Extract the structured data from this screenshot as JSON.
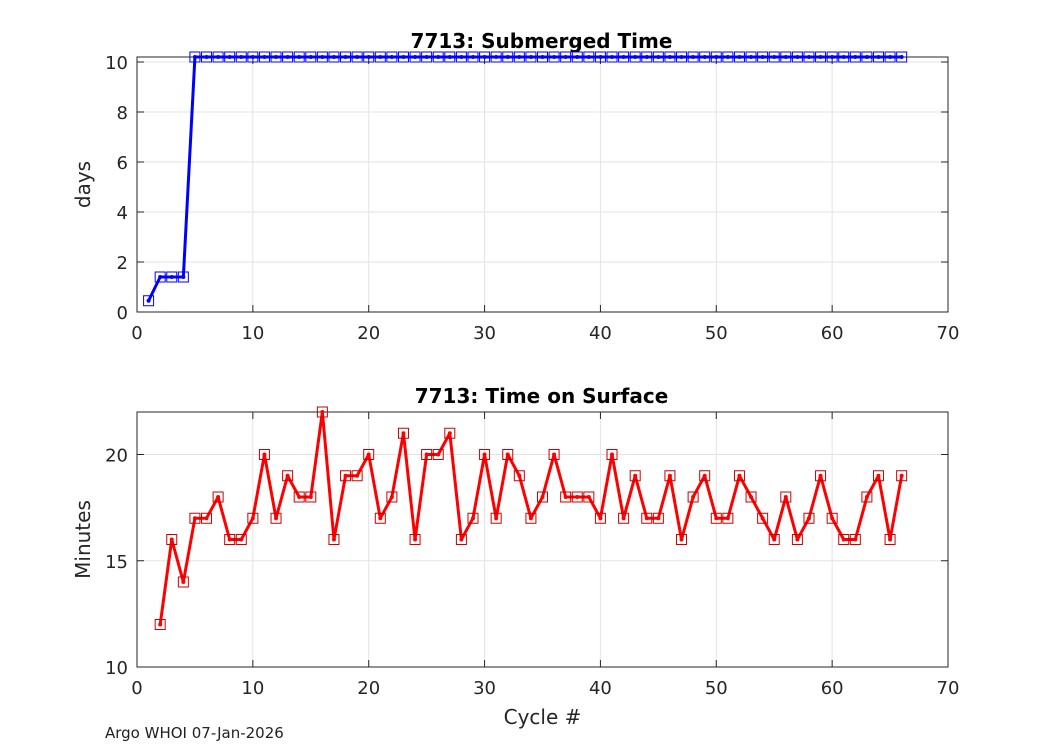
{
  "footer": "Argo WHOI 07-Jan-2026",
  "chart_data": [
    {
      "type": "line",
      "title": "7713: Submerged Time",
      "xlabel": "",
      "ylabel": "days",
      "xlim": [
        0,
        70
      ],
      "ylim": [
        0,
        10.2
      ],
      "xticks": [
        0,
        10,
        20,
        30,
        40,
        50,
        60,
        70
      ],
      "yticks": [
        0,
        2,
        4,
        6,
        8,
        10
      ],
      "grid": true,
      "color": "#0000ff",
      "markerColor": "#0000ff",
      "series": [
        {
          "name": "Submerged Time",
          "x": [
            1,
            2,
            3,
            4,
            5,
            6,
            7,
            8,
            9,
            10,
            11,
            12,
            13,
            14,
            15,
            16,
            17,
            18,
            19,
            20,
            21,
            22,
            23,
            24,
            25,
            26,
            27,
            28,
            29,
            30,
            31,
            32,
            33,
            34,
            35,
            36,
            37,
            38,
            39,
            40,
            41,
            42,
            43,
            44,
            45,
            46,
            47,
            48,
            49,
            50,
            51,
            52,
            53,
            54,
            55,
            56,
            57,
            58,
            59,
            60,
            61,
            62,
            63,
            64,
            65,
            66
          ],
          "y": [
            0.45,
            1.4,
            1.4,
            1.4,
            10.2,
            10.2,
            10.2,
            10.2,
            10.2,
            10.2,
            10.2,
            10.2,
            10.2,
            10.2,
            10.2,
            10.2,
            10.2,
            10.2,
            10.2,
            10.2,
            10.2,
            10.2,
            10.2,
            10.2,
            10.2,
            10.2,
            10.2,
            10.2,
            10.2,
            10.2,
            10.2,
            10.2,
            10.2,
            10.2,
            10.2,
            10.2,
            10.2,
            10.2,
            10.2,
            10.2,
            10.2,
            10.2,
            10.2,
            10.2,
            10.2,
            10.2,
            10.2,
            10.2,
            10.2,
            10.2,
            10.2,
            10.2,
            10.2,
            10.2,
            10.2,
            10.2,
            10.2,
            10.2,
            10.2,
            10.2,
            10.2,
            10.2,
            10.2,
            10.2,
            10.2,
            10.2
          ]
        }
      ]
    },
    {
      "type": "line",
      "title": "7713: Time on Surface",
      "xlabel": "Cycle #",
      "ylabel": "Minutes",
      "xlim": [
        0,
        70
      ],
      "ylim": [
        10,
        22
      ],
      "xticks": [
        0,
        10,
        20,
        30,
        40,
        50,
        60,
        70
      ],
      "yticks": [
        10,
        15,
        20
      ],
      "grid": true,
      "color": "#ff0000",
      "markerColor": "#cc0000",
      "series": [
        {
          "name": "Time on Surface",
          "x": [
            2,
            3,
            4,
            5,
            6,
            7,
            8,
            9,
            10,
            11,
            12,
            13,
            14,
            15,
            16,
            17,
            18,
            19,
            20,
            21,
            22,
            23,
            24,
            25,
            26,
            27,
            28,
            29,
            30,
            31,
            32,
            33,
            34,
            35,
            36,
            37,
            38,
            39,
            40,
            41,
            42,
            43,
            44,
            45,
            46,
            47,
            48,
            49,
            50,
            51,
            52,
            53,
            54,
            55,
            56,
            57,
            58,
            59,
            60,
            61,
            62,
            63,
            64,
            65,
            66
          ],
          "y": [
            12,
            16,
            14,
            17,
            17,
            18,
            16,
            16,
            17,
            20,
            17,
            19,
            18,
            18,
            22,
            16,
            19,
            19,
            20,
            17,
            18,
            21,
            16,
            20,
            20,
            21,
            16,
            17,
            20,
            17,
            20,
            19,
            17,
            18,
            20,
            18,
            18,
            18,
            17,
            20,
            17,
            19,
            17,
            17,
            19,
            16,
            18,
            19,
            17,
            17,
            19,
            18,
            17,
            16,
            18,
            16,
            17,
            19,
            17,
            16,
            16,
            18,
            19,
            16,
            19
          ]
        }
      ]
    }
  ]
}
